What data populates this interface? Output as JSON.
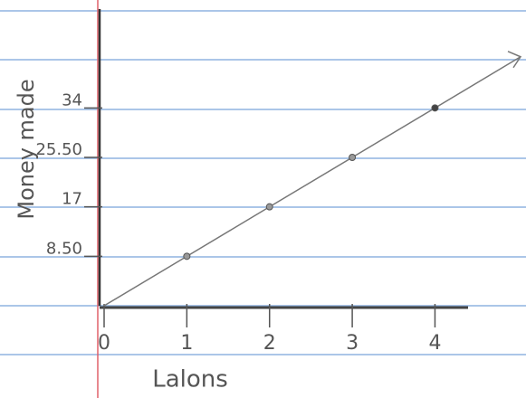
{
  "chart_data": {
    "type": "line",
    "x_label": "Lalons",
    "y_label": "Money made",
    "x": [
      0,
      1,
      2,
      3,
      4
    ],
    "values": [
      0,
      8.5,
      17,
      25.5,
      34
    ],
    "color": "#777",
    "xlim": [
      0,
      4.4
    ],
    "ylim": [
      0,
      51
    ],
    "xticks": [
      0,
      1,
      2,
      3,
      4
    ],
    "yticks": [
      {
        "value": 8.5,
        "label": "8.50"
      },
      17,
      {
        "value": 25.5,
        "label": "25.50"
      },
      34
    ]
  }
}
